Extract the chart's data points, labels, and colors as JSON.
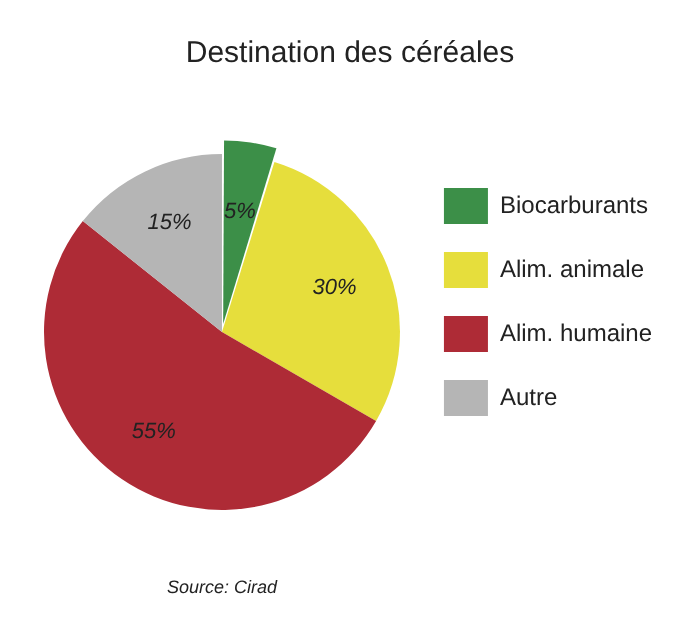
{
  "chart_data": {
    "type": "pie",
    "title": "Destination des céréales",
    "categories": [
      "Biocarburants",
      "Alim. animale",
      "Alim. humaine",
      "Autre"
    ],
    "values": [
      5,
      30,
      55,
      15
    ],
    "colors": [
      "#3c8f48",
      "#e6de3c",
      "#ae2b36",
      "#b5b5b5"
    ],
    "value_labels": [
      "5%",
      "30%",
      "55%",
      "15%"
    ],
    "legend": "right",
    "annotations": [
      "Source: Cirad"
    ]
  }
}
